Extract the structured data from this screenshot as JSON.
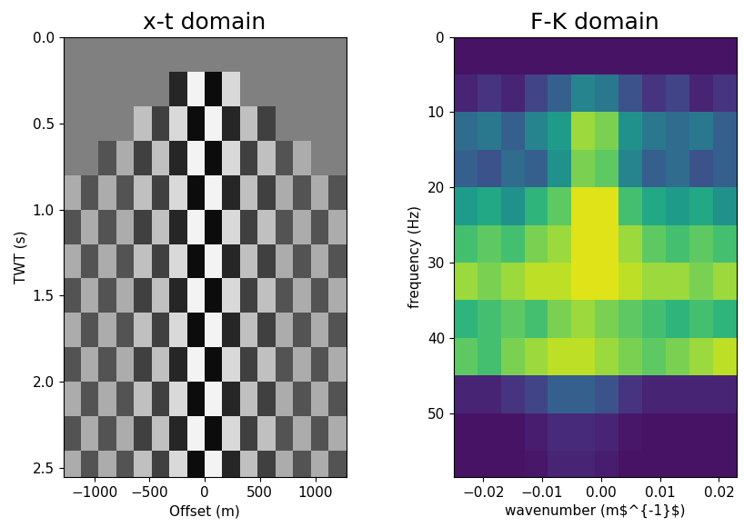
{
  "chart_data": [
    {
      "type": "heatmap",
      "title": "x-t domain",
      "x_label": "Offset (m)",
      "y_label": "TWT (s)",
      "color": "gray",
      "zlim": [
        -1,
        1
      ],
      "x_edges": [
        -1280,
        -1120,
        -960,
        -800,
        -640,
        -480,
        -320,
        -160,
        0,
        160,
        320,
        480,
        640,
        800,
        960,
        1120,
        1280
      ],
      "y_edges": [
        0,
        0.2,
        0.4,
        0.6,
        0.8,
        1.0,
        1.2,
        1.4,
        1.6,
        1.8,
        2.0,
        2.2,
        2.4,
        2.6
      ],
      "cells": [
        [
          0,
          0,
          0,
          0,
          0,
          0,
          0,
          0,
          0,
          0,
          0,
          0,
          0,
          0,
          0,
          0
        ],
        [
          0,
          0,
          0,
          0,
          0,
          0,
          -0.7,
          0.9,
          -0.9,
          0.7,
          0,
          0,
          0,
          0,
          0,
          0
        ],
        [
          0,
          0,
          0,
          0,
          0.5,
          -0.5,
          0.7,
          -0.9,
          0.9,
          -0.7,
          0.5,
          -0.5,
          0,
          0,
          0,
          0
        ],
        [
          0,
          0,
          -0.35,
          0.35,
          -0.5,
          0.5,
          -0.7,
          0.9,
          -0.9,
          0.7,
          -0.5,
          0.5,
          -0.35,
          0.35,
          0,
          0
        ],
        [
          0.35,
          -0.35,
          0.35,
          -0.35,
          0.5,
          -0.5,
          0.7,
          -0.9,
          0.9,
          -0.7,
          0.5,
          -0.5,
          0.35,
          -0.35,
          0.35,
          -0.35
        ],
        [
          -0.35,
          0.35,
          -0.35,
          0.35,
          -0.5,
          0.5,
          -0.7,
          0.9,
          -0.9,
          0.7,
          -0.5,
          0.5,
          -0.35,
          0.35,
          -0.35,
          0.35
        ],
        [
          0.35,
          -0.35,
          0.35,
          -0.35,
          0.5,
          -0.5,
          0.7,
          -0.9,
          0.9,
          -0.7,
          0.5,
          -0.5,
          0.35,
          -0.35,
          0.35,
          -0.35
        ],
        [
          -0.35,
          0.35,
          -0.35,
          0.35,
          -0.5,
          0.5,
          -0.7,
          0.9,
          -0.9,
          0.7,
          -0.5,
          0.5,
          -0.35,
          0.35,
          -0.35,
          0.35
        ],
        [
          0.35,
          -0.35,
          0.35,
          -0.35,
          0.5,
          -0.5,
          0.7,
          -0.9,
          0.9,
          -0.7,
          0.5,
          -0.5,
          0.35,
          -0.35,
          0.35,
          -0.35
        ],
        [
          -0.35,
          0.35,
          -0.35,
          0.35,
          -0.5,
          0.5,
          -0.7,
          0.9,
          -0.9,
          0.7,
          -0.5,
          0.5,
          -0.35,
          0.35,
          -0.35,
          0.35
        ],
        [
          0.35,
          -0.35,
          0.35,
          -0.35,
          0.5,
          -0.5,
          0.7,
          -0.9,
          0.9,
          -0.7,
          0.5,
          -0.5,
          0.35,
          -0.35,
          0.35,
          -0.35
        ],
        [
          -0.35,
          0.35,
          -0.35,
          0.35,
          -0.5,
          0.5,
          -0.7,
          0.9,
          -0.9,
          0.7,
          -0.5,
          0.5,
          -0.35,
          0.35,
          -0.35,
          0.35
        ],
        [
          0.35,
          -0.35,
          0.35,
          -0.35,
          0.5,
          -0.5,
          0.7,
          -0.9,
          0.9,
          -0.7,
          0.5,
          -0.5,
          0.35,
          -0.35,
          0.35,
          -0.35
        ]
      ],
      "xlim": [
        -1280,
        1280
      ],
      "ylim": [
        2.55,
        0
      ],
      "xticks": [
        {
          "value": -1000,
          "label": "−1000"
        },
        {
          "value": -500,
          "label": "−500"
        },
        0,
        500,
        1000
      ],
      "yticks": [
        {
          "value": 0,
          "label": "0.0"
        },
        0.5,
        {
          "value": 1,
          "label": "1.0"
        },
        1.5,
        {
          "value": 2,
          "label": "2.0"
        },
        2.5
      ]
    },
    {
      "type": "heatmap",
      "title": "F-K domain",
      "x_label": "wavenumber (m$^{-1}$)",
      "y_label": "frequency (Hz)",
      "color": "viridis",
      "zlim": [
        0,
        1
      ],
      "x_edges": [
        -0.025,
        -0.021,
        -0.017,
        -0.013,
        -0.009,
        -0.005,
        -0.001,
        0.003,
        0.007,
        0.011,
        0.015,
        0.019,
        0.023
      ],
      "y_edges": [
        0,
        5,
        10,
        15,
        20,
        25,
        30,
        35,
        40,
        45,
        50,
        55,
        60
      ],
      "cells": [
        [
          0.05,
          0.05,
          0.05,
          0.05,
          0.05,
          0.05,
          0.05,
          0.05,
          0.05,
          0.05,
          0.05,
          0.05
        ],
        [
          0.1,
          0.15,
          0.1,
          0.2,
          0.3,
          0.45,
          0.4,
          0.25,
          0.15,
          0.2,
          0.1,
          0.15
        ],
        [
          0.35,
          0.4,
          0.3,
          0.45,
          0.55,
          0.85,
          0.8,
          0.5,
          0.4,
          0.35,
          0.4,
          0.3
        ],
        [
          0.3,
          0.25,
          0.35,
          0.3,
          0.5,
          0.8,
          0.75,
          0.45,
          0.3,
          0.35,
          0.25,
          0.3
        ],
        [
          0.55,
          0.6,
          0.5,
          0.65,
          0.75,
          0.95,
          0.95,
          0.7,
          0.6,
          0.55,
          0.6,
          0.5
        ],
        [
          0.7,
          0.75,
          0.7,
          0.8,
          0.85,
          0.95,
          0.95,
          0.85,
          0.75,
          0.7,
          0.75,
          0.7
        ],
        [
          0.85,
          0.8,
          0.85,
          0.9,
          0.9,
          0.95,
          0.95,
          0.9,
          0.85,
          0.85,
          0.8,
          0.85
        ],
        [
          0.65,
          0.7,
          0.75,
          0.7,
          0.8,
          0.85,
          0.8,
          0.75,
          0.7,
          0.65,
          0.7,
          0.65
        ],
        [
          0.75,
          0.7,
          0.8,
          0.85,
          0.9,
          0.9,
          0.85,
          0.8,
          0.75,
          0.8,
          0.85,
          0.9
        ],
        [
          0.1,
          0.1,
          0.15,
          0.2,
          0.3,
          0.3,
          0.25,
          0.15,
          0.1,
          0.1,
          0.1,
          0.1
        ],
        [
          0.05,
          0.05,
          0.05,
          0.08,
          0.12,
          0.12,
          0.1,
          0.06,
          0.05,
          0.05,
          0.05,
          0.05
        ],
        [
          0.05,
          0.05,
          0.05,
          0.06,
          0.1,
          0.1,
          0.08,
          0.05,
          0.05,
          0.05,
          0.05,
          0.05
        ]
      ],
      "xlim": [
        -0.025,
        0.023
      ],
      "ylim": [
        58.5,
        0
      ],
      "xticks": [
        {
          "value": -0.02,
          "label": "−0.02"
        },
        {
          "value": -0.01,
          "label": "−0.01"
        },
        {
          "value": 0,
          "label": "0.00"
        },
        0.01,
        0.02
      ],
      "yticks": [
        0,
        10,
        20,
        30,
        40,
        50
      ]
    }
  ]
}
